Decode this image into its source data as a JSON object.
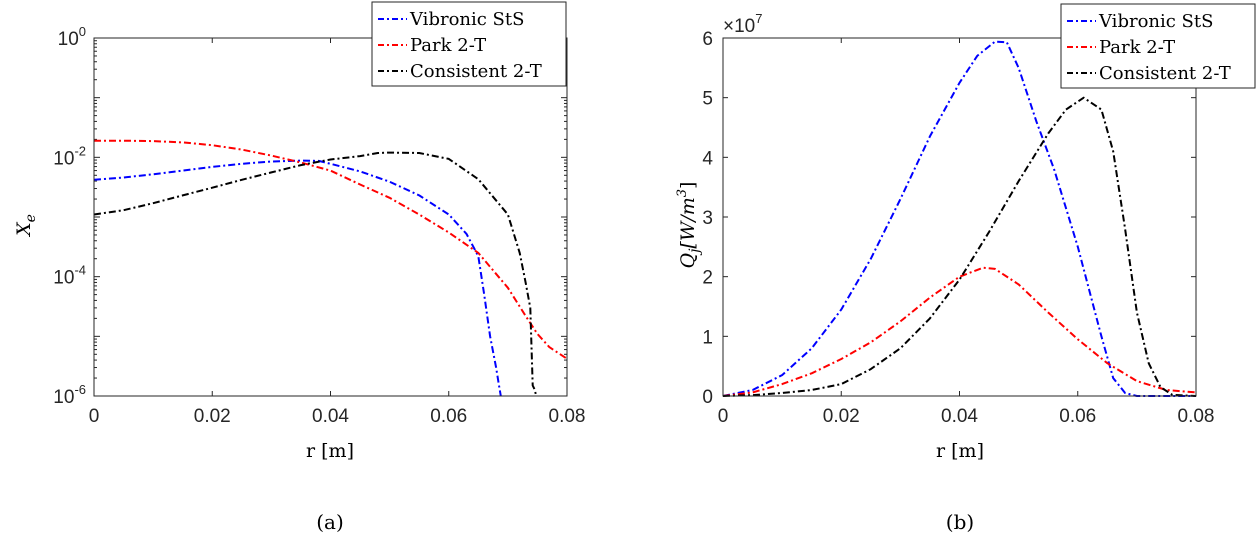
{
  "chart_data": [
    {
      "type": "line",
      "panel": "(a)",
      "xlabel": "r [m]",
      "ylabel": "X_e",
      "yscale": "log",
      "xlim": [
        0,
        0.08
      ],
      "ylim": [
        1e-06,
        1
      ],
      "xticks": [
        "0",
        "0.02",
        "0.04",
        "0.06",
        "0.08"
      ],
      "yticks": [
        {
          "base": "10",
          "exp": "0"
        },
        {
          "base": "10",
          "exp": "-2"
        },
        {
          "base": "10",
          "exp": "-4"
        },
        {
          "base": "10",
          "exp": "-6"
        }
      ],
      "legend_position": "top-right",
      "series": [
        {
          "name": "Vibronic StS",
          "color": "#0000ff",
          "x": [
            0,
            0.005,
            0.01,
            0.015,
            0.02,
            0.025,
            0.03,
            0.035,
            0.038,
            0.04,
            0.045,
            0.05,
            0.055,
            0.06,
            0.063,
            0.065,
            0.066,
            0.067,
            0.068,
            0.0685,
            0.0688
          ],
          "y": [
            0.0042,
            0.0046,
            0.0052,
            0.006,
            0.0069,
            0.0078,
            0.0085,
            0.0088,
            0.0087,
            0.0078,
            0.0058,
            0.0039,
            0.0023,
            0.0011,
            0.00052,
            0.00022,
            5e-05,
            1e-05,
            3e-06,
            1.5e-06,
            1e-06
          ]
        },
        {
          "name": "Park 2-T",
          "color": "#ff0000",
          "x": [
            0,
            0.005,
            0.01,
            0.015,
            0.02,
            0.025,
            0.03,
            0.035,
            0.04,
            0.045,
            0.05,
            0.055,
            0.06,
            0.065,
            0.07,
            0.073,
            0.075,
            0.077,
            0.08
          ],
          "y": [
            0.019,
            0.019,
            0.0187,
            0.0178,
            0.016,
            0.0135,
            0.0107,
            0.0082,
            0.006,
            0.0035,
            0.0021,
            0.0011,
            0.00055,
            0.00025,
            6.5e-05,
            2.2e-05,
            1.1e-05,
            6.6e-06,
            4.2e-06
          ]
        },
        {
          "name": "Consistent 2-T",
          "color": "#000000",
          "x": [
            0,
            0.005,
            0.01,
            0.015,
            0.02,
            0.025,
            0.03,
            0.035,
            0.04,
            0.045,
            0.048,
            0.05,
            0.055,
            0.06,
            0.065,
            0.07,
            0.072,
            0.073,
            0.0738,
            0.0742,
            0.0745,
            0.0748
          ],
          "y": [
            0.0011,
            0.0013,
            0.0017,
            0.0023,
            0.0031,
            0.0042,
            0.0056,
            0.0074,
            0.0092,
            0.0105,
            0.0118,
            0.012,
            0.0118,
            0.0094,
            0.0043,
            0.0011,
            0.00025,
            8e-05,
            3e-05,
            1.5e-06,
            1.3e-06,
            1e-06
          ]
        }
      ]
    },
    {
      "type": "line",
      "panel": "(b)",
      "xlabel": "r [m]",
      "ylabel": "Q_j [W/m^3]",
      "multiplier": {
        "base": "×10",
        "exp": "7"
      },
      "xlim": [
        0,
        0.08
      ],
      "ylim": [
        0,
        60000000
      ],
      "xticks": [
        "0",
        "0.02",
        "0.04",
        "0.06",
        "0.08"
      ],
      "yticks": [
        "0",
        "1",
        "2",
        "3",
        "4",
        "5",
        "6"
      ],
      "legend_position": "top-right",
      "series": [
        {
          "name": "Vibronic StS",
          "color": "#0000ff",
          "x": [
            0,
            0.005,
            0.01,
            0.015,
            0.02,
            0.025,
            0.03,
            0.035,
            0.04,
            0.043,
            0.046,
            0.048,
            0.05,
            0.053,
            0.056,
            0.06,
            0.064,
            0.066,
            0.068,
            0.07,
            0.072,
            0.075,
            0.08
          ],
          "y": [
            0,
            1000000,
            3500000,
            8000000,
            14500000,
            23000000,
            33000000,
            43500000,
            52500000,
            57000000,
            59400000,
            59300000,
            55000000,
            46000000,
            38000000,
            25000000,
            10000000,
            3000000,
            500000,
            0,
            0,
            0,
            0
          ]
        },
        {
          "name": "Park 2-T",
          "color": "#ff0000",
          "x": [
            0,
            0.005,
            0.01,
            0.015,
            0.02,
            0.025,
            0.03,
            0.035,
            0.04,
            0.044,
            0.046,
            0.05,
            0.055,
            0.06,
            0.065,
            0.07,
            0.075,
            0.08
          ],
          "y": [
            0,
            600000,
            2000000,
            3800000,
            6200000,
            9000000,
            12500000,
            16500000,
            20000000,
            21500000,
            21300000,
            18700000,
            14000000,
            9500000,
            5500000,
            2500000,
            1000000,
            600000
          ]
        },
        {
          "name": "Consistent 2-T",
          "color": "#000000",
          "x": [
            0,
            0.005,
            0.01,
            0.015,
            0.02,
            0.025,
            0.03,
            0.035,
            0.04,
            0.045,
            0.05,
            0.055,
            0.058,
            0.061,
            0.064,
            0.066,
            0.068,
            0.07,
            0.072,
            0.074,
            0.076,
            0.08
          ],
          "y": [
            0,
            150000,
            500000,
            1000000,
            2000000,
            4500000,
            8000000,
            13000000,
            19500000,
            27500000,
            36000000,
            44000000,
            48000000,
            50000000,
            48000000,
            41000000,
            28000000,
            14000000,
            5500000,
            1500000,
            200000,
            0
          ]
        }
      ]
    }
  ]
}
